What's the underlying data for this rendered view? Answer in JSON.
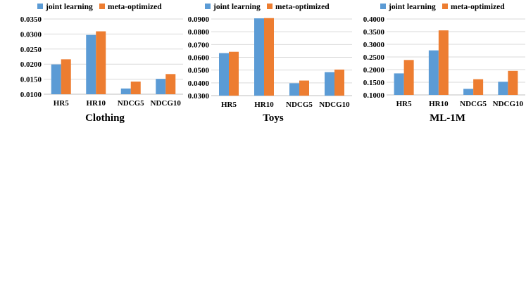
{
  "chart_data": [
    {
      "type": "bar",
      "title": "Clothing",
      "categories": [
        "HR5",
        "HR10",
        "NDCG5",
        "NDCG10"
      ],
      "series": [
        {
          "name": "joint learning",
          "color": "#5b9bd5",
          "values": [
            0.0199,
            0.0297,
            0.0119,
            0.0151
          ]
        },
        {
          "name": "meta-optimized",
          "color": "#ed7d31",
          "values": [
            0.0216,
            0.0309,
            0.0142,
            0.0167
          ]
        }
      ],
      "ylim": [
        0.01,
        0.035
      ],
      "yticks": [
        "0.0100",
        "0.0150",
        "0.0200",
        "0.0250",
        "0.0300",
        "0.0350"
      ],
      "legend": [
        "joint learning",
        "meta-optimized"
      ]
    },
    {
      "type": "bar",
      "title": "Toys",
      "categories": [
        "HR5",
        "HR10",
        "NDCG5",
        "NDCG10"
      ],
      "series": [
        {
          "name": "joint learning",
          "color": "#5b9bd5",
          "values": [
            0.0633,
            0.0905,
            0.0397,
            0.0484
          ]
        },
        {
          "name": "meta-optimized",
          "color": "#ed7d31",
          "values": [
            0.0643,
            0.0907,
            0.0418,
            0.0504
          ]
        }
      ],
      "ylim": [
        0.03,
        0.09
      ],
      "yticks": [
        "0.0300",
        "0.0400",
        "0.0500",
        "0.0600",
        "0.0700",
        "0.0800",
        "0.0900"
      ],
      "legend": [
        "joint learning",
        "meta-optimized"
      ]
    },
    {
      "type": "bar",
      "title": "ML-1M",
      "categories": [
        "HR5",
        "HR10",
        "NDCG5",
        "NDCG10"
      ],
      "series": [
        {
          "name": "joint learning",
          "color": "#5b9bd5",
          "values": [
            0.185,
            0.276,
            0.124,
            0.152
          ]
        },
        {
          "name": "meta-optimized",
          "color": "#ed7d31",
          "values": [
            0.238,
            0.355,
            0.162,
            0.195
          ]
        }
      ],
      "ylim": [
        0.1,
        0.4
      ],
      "yticks": [
        "0.1000",
        "0.1500",
        "0.2000",
        "0.2500",
        "0.3000",
        "0.3500",
        "0.4000"
      ],
      "legend": [
        "joint learning",
        "meta-optimized"
      ]
    }
  ]
}
